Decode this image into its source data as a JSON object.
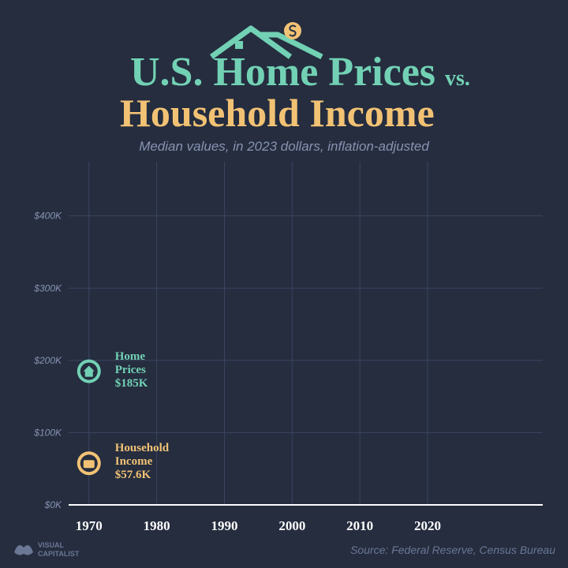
{
  "chart_data": {
    "type": "line",
    "title": {
      "line1": "U.S. Home Prices",
      "connector": "vs.",
      "line2": "Household Income"
    },
    "subtitle": "Median values, in 2023 dollars, inflation-adjusted",
    "source": "Source: Federal Reserve, Census Bureau",
    "logo": {
      "line1": "VISUAL",
      "line2": "CAPITALIST"
    },
    "x": [
      1970
    ],
    "series": [
      {
        "name": "Home Prices",
        "color": "#72d1b4",
        "values": [
          185000
        ],
        "value_labels": [
          "$185K"
        ]
      },
      {
        "name": "Household Income",
        "color": "#f2c274",
        "values": [
          57600
        ],
        "value_labels": [
          "$57.6K"
        ]
      }
    ],
    "xlim": [
      1967,
      2037
    ],
    "xticks": [
      1970,
      1980,
      1990,
      2000,
      2010,
      2020
    ],
    "ylim": [
      0,
      475000
    ],
    "yticks": [
      {
        "value": 0,
        "label": "$0K"
      },
      {
        "value": 100000,
        "label": "$100K"
      },
      {
        "value": 200000,
        "label": "$200K"
      },
      {
        "value": 300000,
        "label": "$300K"
      },
      {
        "value": 400000,
        "label": "$400K"
      }
    ],
    "grid": true
  }
}
